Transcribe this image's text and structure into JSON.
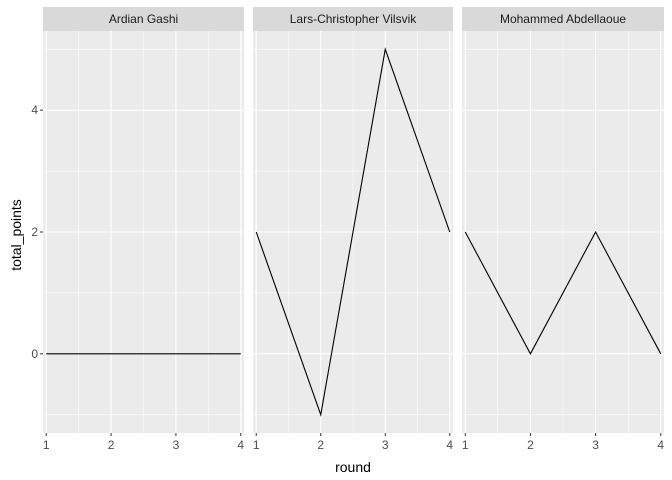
{
  "chart_data": {
    "type": "line",
    "facet_by": "player",
    "xlabel": "round",
    "ylabel": "total_points",
    "x_ticks": [
      1,
      2,
      3,
      4
    ],
    "x_tick_labels": [
      "1",
      "2",
      "3",
      "4"
    ],
    "y_ticks": [
      0,
      2,
      4
    ],
    "y_tick_labels": [
      "0",
      "2",
      "4"
    ],
    "xlim": [
      0.95,
      4.05
    ],
    "ylim": [
      -1.3,
      5.3
    ],
    "grid": true,
    "panel_background": "#ebebeb",
    "strip_background": "#d9d9d9",
    "line_color": "#000000",
    "panels": [
      {
        "title": "Ardian Gashi",
        "x": [
          1,
          2,
          3,
          4
        ],
        "y": [
          0,
          0,
          0,
          0
        ]
      },
      {
        "title": "Lars-Christopher Vilsvik",
        "x": [
          1,
          2,
          3,
          4
        ],
        "y": [
          2,
          -1,
          5,
          2
        ]
      },
      {
        "title": "Mohammed Abdellaoue",
        "x": [
          1,
          2,
          3,
          4
        ],
        "y": [
          2,
          0,
          2,
          0
        ]
      }
    ]
  }
}
